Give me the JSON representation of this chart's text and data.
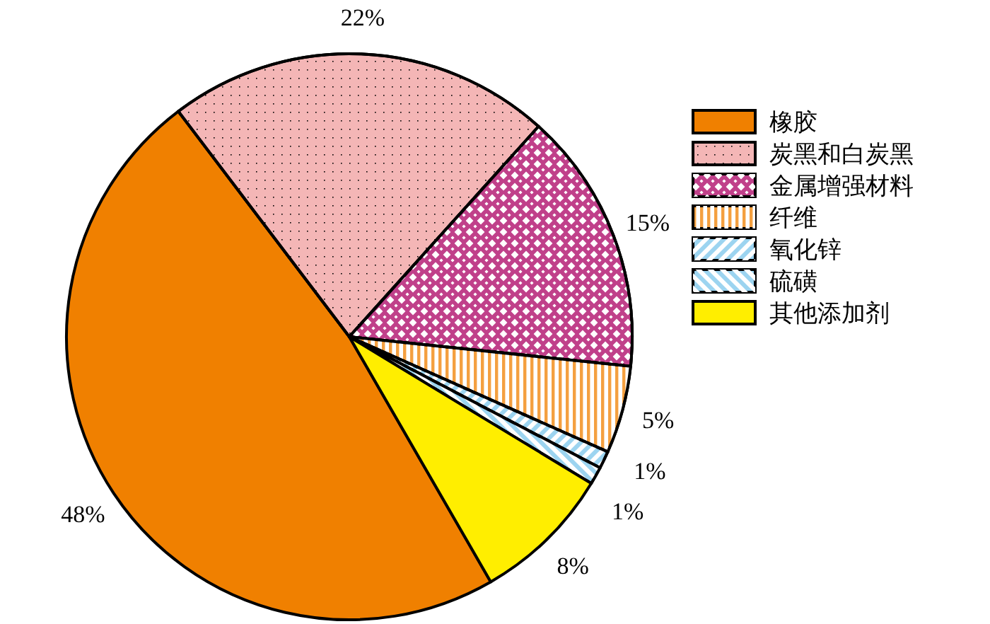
{
  "chart_data": {
    "type": "pie",
    "categories": [
      "橡胶",
      "炭黑和白炭黑",
      "金属增强材料",
      "纤维",
      "氧化锌",
      "硫磺",
      "其他添加剂"
    ],
    "values": [
      48,
      22,
      15,
      5,
      1,
      1,
      8
    ],
    "value_labels": [
      "48%",
      "22%",
      "15%",
      "5%",
      "1%",
      "1%",
      "8%"
    ],
    "colors": [
      "#f08000",
      "#f4b6b6",
      "#c0408a",
      "#f4a040",
      "#9cd4f0",
      "#9cd4f0",
      "#ffee00"
    ],
    "legend": "right"
  }
}
